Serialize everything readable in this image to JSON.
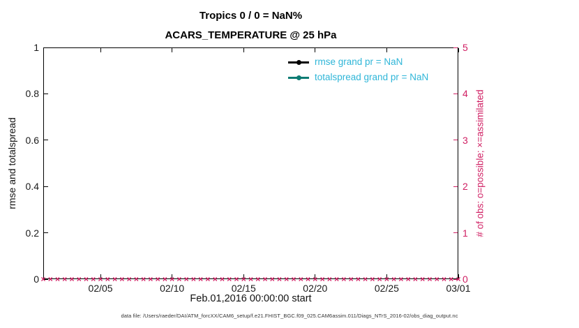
{
  "figure": {
    "title": "Tropics 0 / 0 = NaN%",
    "subtitle": "ACARS_TEMPERATURE @ 25 hPa",
    "xlabel": "Feb.01,2016 00:00:00 start",
    "ylabel_left": "rmse and totalspread",
    "ylabel_right": "# of obs: o=possible; ×=assimilated",
    "footer": "data file: /Users/raeder/DAI/ATM_forcXX/CAM6_setup/f.e21.FHIST_BGC.f09_025.CAM6assim.011/Diags_NTrS_2016-02/obs_diag_output.nc"
  },
  "colors": {
    "obs_crimson": "#d01f63",
    "legend_text_cyan": "#2fb6d8",
    "rmse_black": "#000000",
    "totalspread_teal": "#0e7c74",
    "axis_black": "#000000"
  },
  "legend": [
    {
      "label": "rmse grand pr = NaN",
      "line_color": "#000000"
    },
    {
      "label": "totalspread grand pr = NaN",
      "line_color": "#0e7c74"
    }
  ],
  "chart_data": {
    "type": "line",
    "title": "Tropics 0 / 0 = NaN%",
    "subtitle": "ACARS_TEMPERATURE @ 25 hPa",
    "xlabel": "Feb.01,2016 00:00:00 start",
    "x_axis": {
      "lim_days": [
        0,
        29
      ],
      "tick_days": [
        4,
        9,
        14,
        19,
        24,
        29
      ],
      "tick_labels": [
        "02/05",
        "02/10",
        "02/15",
        "02/20",
        "02/25",
        "03/01"
      ]
    },
    "y_left": {
      "label": "rmse and totalspread",
      "lim": [
        0,
        1
      ],
      "ticks": [
        0,
        0.2,
        0.4,
        0.6,
        0.8,
        1
      ],
      "tick_labels": [
        "0",
        "0.2",
        "0.4",
        "0.6",
        "0.8",
        "1"
      ]
    },
    "y_right": {
      "label": "# of obs: o=possible; ×=assimilated",
      "lim": [
        0,
        5
      ],
      "ticks": [
        0,
        1,
        2,
        3,
        4,
        5
      ],
      "tick_labels": [
        "0",
        "1",
        "2",
        "3",
        "4",
        "5"
      ]
    },
    "series": [
      {
        "name": "rmse",
        "legend": "rmse grand pr = NaN",
        "value": "NaN",
        "plotted": false
      },
      {
        "name": "totalspread",
        "legend": "totalspread grand pr = NaN",
        "value": "NaN",
        "plotted": false
      },
      {
        "name": "possible_obs",
        "marker": "o",
        "axis": "right",
        "constant_value": 0
      },
      {
        "name": "assimilated_obs",
        "marker": "×",
        "axis": "right",
        "constant_value": 0
      }
    ],
    "obs_marker_count": 59,
    "grid": false,
    "legend_position": "top-right-inside",
    "legend_box": false
  }
}
